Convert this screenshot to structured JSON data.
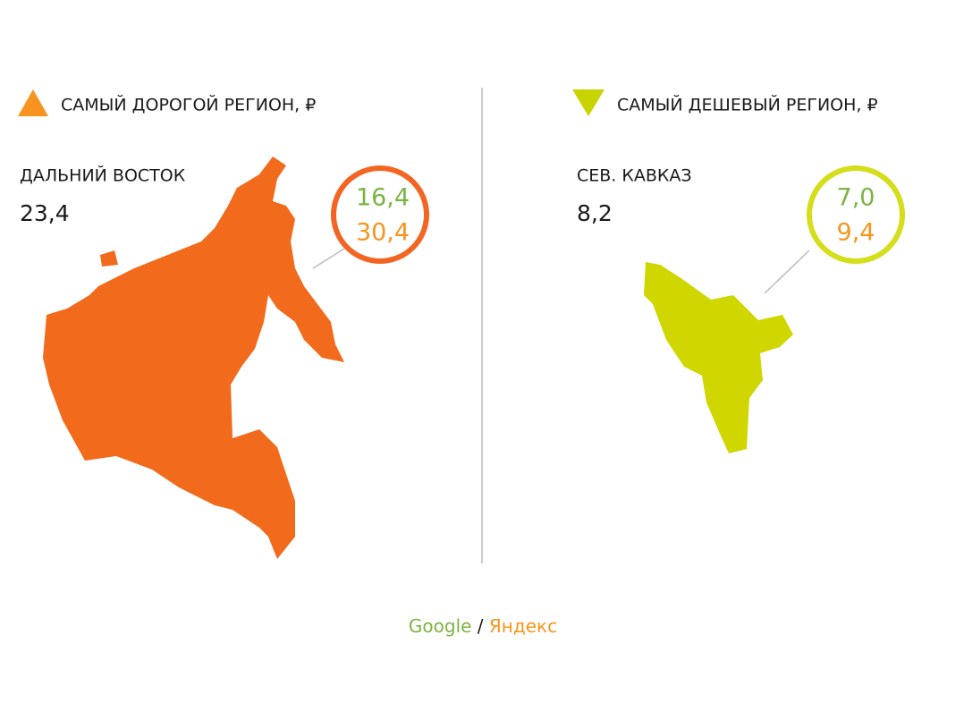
{
  "left": {
    "heading": "САМЫЙ ДОРОГОЙ РЕГИОН, ₽",
    "region": "ДАЛЬНИЙ ВОСТОК",
    "value": "23,4",
    "google": "16,4",
    "yandex": "30,4"
  },
  "right": {
    "heading": "САМЫЙ ДЕШЕВЫЙ РЕГИОН, ₽",
    "region": "СЕВ. КАВКАЗ",
    "value": "8,2",
    "google": "7,0",
    "yandex": "9,4"
  },
  "legend": {
    "google": "Google",
    "separator": "/",
    "yandex": "Яндекс"
  }
}
